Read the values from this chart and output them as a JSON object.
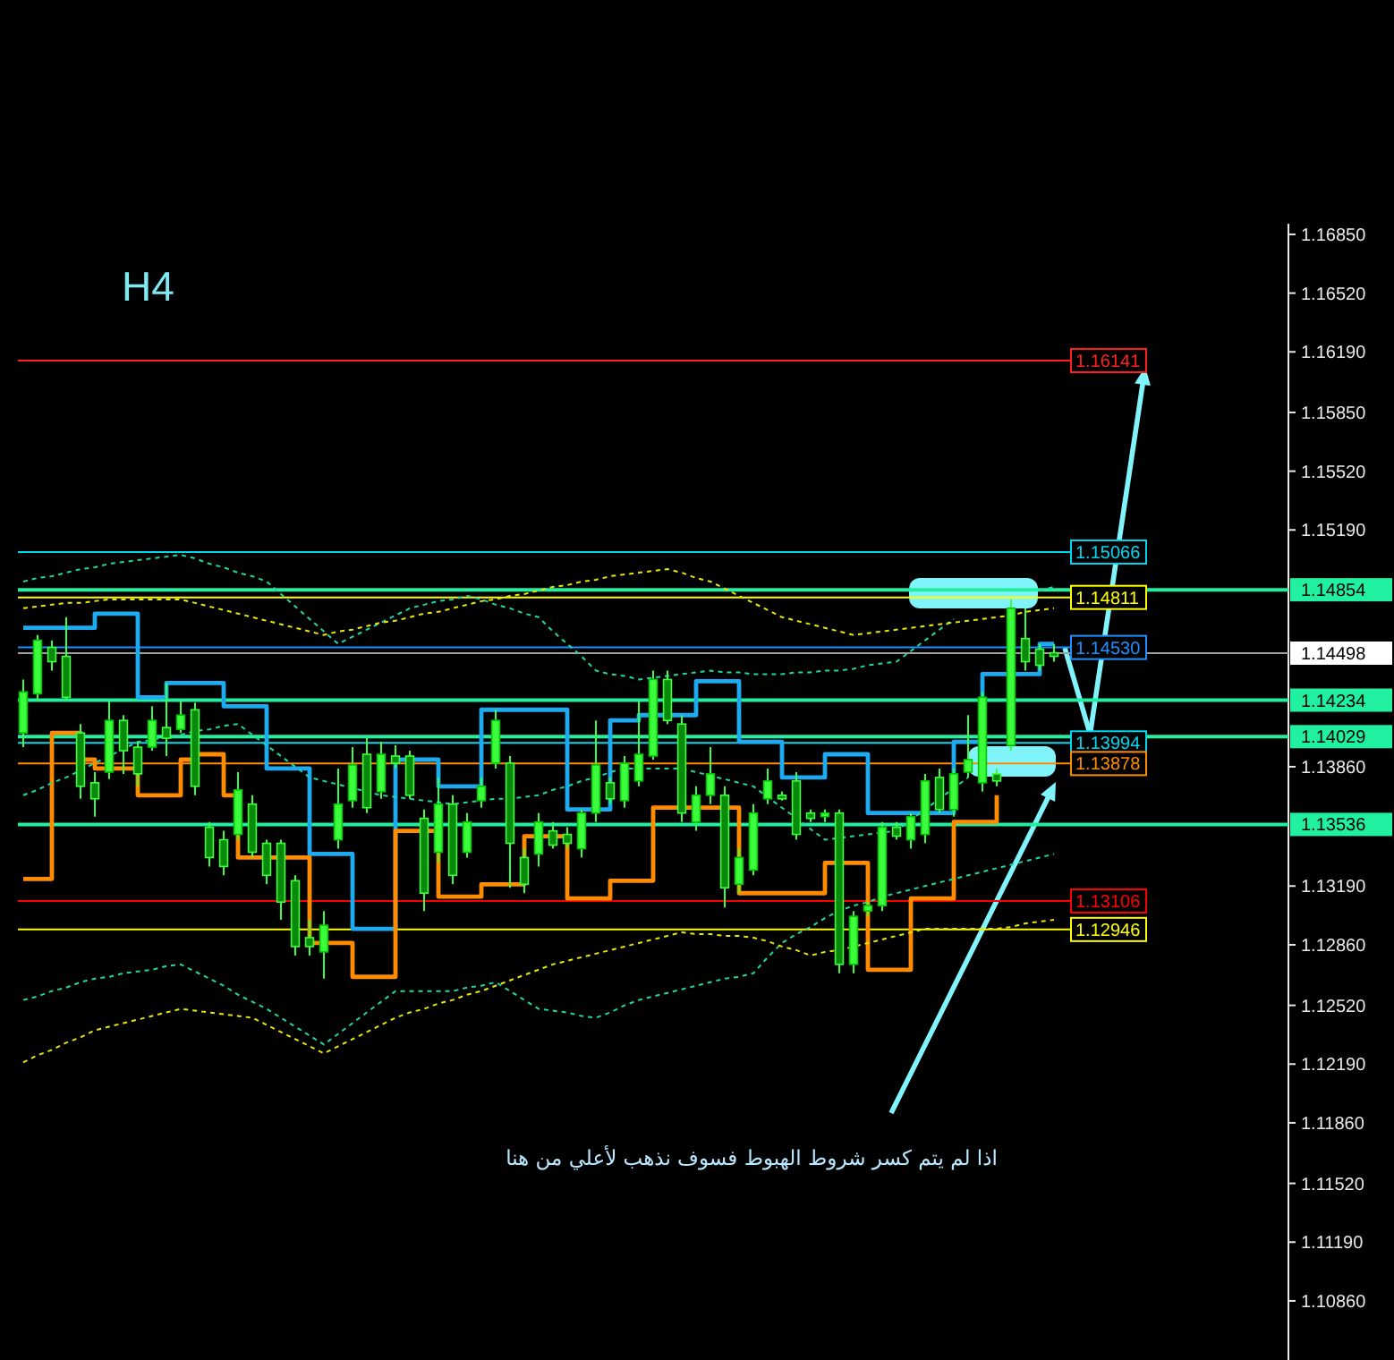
{
  "chart_data": {
    "type": "candlestick",
    "title": "H4",
    "annotations": [
      "اذا لم يتم كسر شروط الهبوط فسوف نذهب لأعلي من هنا"
    ],
    "ylim": [
      1.10528,
      1.1691
    ],
    "tick_labels": "y",
    "yticks": [
      {
        "value": 1.1685,
        "label": "1.16850"
      },
      {
        "value": 1.1652,
        "label": "1.16520"
      },
      {
        "value": 1.1619,
        "label": "1.16190"
      },
      {
        "value": 1.1585,
        "label": "1.15850"
      },
      {
        "value": 1.1552,
        "label": "1.15520"
      },
      {
        "value": 1.1519,
        "label": "1.15190"
      },
      {
        "value": 1.1386,
        "label": "1.13860"
      },
      {
        "value": 1.1319,
        "label": "1.13190"
      },
      {
        "value": 1.1286,
        "label": "1.12860"
      },
      {
        "value": 1.1252,
        "label": "1.12520"
      },
      {
        "value": 1.1219,
        "label": "1.12190"
      },
      {
        "value": 1.1186,
        "label": "1.11860"
      },
      {
        "value": 1.1152,
        "label": "1.11520"
      },
      {
        "value": 1.1119,
        "label": "1.11190"
      },
      {
        "value": 1.1086,
        "label": "1.10860"
      }
    ],
    "categories": [
      null,
      null,
      null,
      null,
      null,
      null,
      null,
      null,
      null,
      null,
      null,
      null,
      null,
      null,
      null,
      null,
      null,
      null,
      null,
      null,
      null,
      null,
      null,
      null,
      null,
      null,
      null,
      null,
      null,
      null,
      null,
      null,
      null,
      null,
      null,
      null,
      null,
      null,
      null,
      null,
      null,
      null,
      null,
      null,
      null,
      null,
      null,
      null,
      null,
      null,
      null,
      null,
      null,
      null,
      null,
      null,
      null,
      null,
      null,
      null,
      null,
      null,
      null,
      null,
      null,
      null,
      null,
      null,
      null,
      null,
      null,
      null,
      null
    ],
    "ohlc": [
      [
        1.1405,
        1.1435,
        1.1397,
        1.1428
      ],
      [
        1.1427,
        1.146,
        1.1423,
        1.1457
      ],
      [
        1.1453,
        1.1457,
        1.144,
        1.1445
      ],
      [
        1.1448,
        1.147,
        1.1423,
        1.1425
      ],
      [
        1.1405,
        1.141,
        1.1368,
        1.1375
      ],
      [
        1.1377,
        1.1383,
        1.1358,
        1.1368
      ],
      [
        1.1383,
        1.1423,
        1.1379,
        1.1412
      ],
      [
        1.1412,
        1.1415,
        1.1382,
        1.1395
      ],
      [
        1.1397,
        1.14,
        1.1375,
        1.1382
      ],
      [
        1.1397,
        1.142,
        1.1395,
        1.1412
      ],
      [
        1.1408,
        1.1433,
        1.1392,
        1.1402
      ],
      [
        1.1407,
        1.1423,
        1.1405,
        1.1415
      ],
      [
        1.1418,
        1.1422,
        1.137,
        1.1375
      ],
      [
        1.1352,
        1.1355,
        1.133,
        1.1335
      ],
      [
        1.1345,
        1.135,
        1.1325,
        1.133
      ],
      [
        1.1348,
        1.1383,
        1.1345,
        1.1373
      ],
      [
        1.1365,
        1.137,
        1.1335,
        1.1338
      ],
      [
        1.1343,
        1.1345,
        1.132,
        1.1325
      ],
      [
        1.1343,
        1.1345,
        1.13,
        1.131
      ],
      [
        1.1322,
        1.1325,
        1.128,
        1.1285
      ],
      [
        1.129,
        1.13,
        1.128,
        1.1285
      ],
      [
        1.1282,
        1.1305,
        1.1267,
        1.1297
      ],
      [
        1.1345,
        1.1385,
        1.134,
        1.1365
      ],
      [
        1.1367,
        1.1397,
        1.1363,
        1.1387
      ],
      [
        1.1393,
        1.1402,
        1.136,
        1.1363
      ],
      [
        1.1372,
        1.14,
        1.1368,
        1.1393
      ],
      [
        1.1392,
        1.1398,
        1.1385,
        1.1388
      ],
      [
        1.1392,
        1.1395,
        1.1368,
        1.137
      ],
      [
        1.1357,
        1.1362,
        1.1305,
        1.1315
      ],
      [
        1.1338,
        1.138,
        1.1332,
        1.1365
      ],
      [
        1.1365,
        1.137,
        1.132,
        1.1325
      ],
      [
        1.1338,
        1.136,
        1.1335,
        1.1355
      ],
      [
        1.1367,
        1.138,
        1.1363,
        1.1375
      ],
      [
        1.1388,
        1.1418,
        1.1385,
        1.1412
      ],
      [
        1.1388,
        1.1392,
        1.1318,
        1.1343
      ],
      [
        1.1335,
        1.134,
        1.1315,
        1.132
      ],
      [
        1.1337,
        1.136,
        1.133,
        1.1355
      ],
      [
        1.135,
        1.1355,
        1.134,
        1.1342
      ],
      [
        1.1348,
        1.1352,
        1.134,
        1.1343
      ],
      [
        1.134,
        1.1362,
        1.1335,
        1.136
      ],
      [
        1.136,
        1.1412,
        1.1355,
        1.1387
      ],
      [
        1.1377,
        1.138,
        1.1365,
        1.1368
      ],
      [
        1.1367,
        1.1392,
        1.1363,
        1.1388
      ],
      [
        1.1378,
        1.1423,
        1.1375,
        1.1393
      ],
      [
        1.1392,
        1.144,
        1.139,
        1.1435
      ],
      [
        1.1435,
        1.144,
        1.141,
        1.1412
      ],
      [
        1.141,
        1.1415,
        1.1355,
        1.136
      ],
      [
        1.1355,
        1.1375,
        1.135,
        1.137
      ],
      [
        1.137,
        1.1397,
        1.1365,
        1.1382
      ],
      [
        1.137,
        1.1375,
        1.1307,
        1.1318
      ],
      [
        1.132,
        1.134,
        1.1315,
        1.1335
      ],
      [
        1.1328,
        1.1365,
        1.1325,
        1.136
      ],
      [
        1.1368,
        1.1385,
        1.1365,
        1.1378
      ],
      [
        1.137,
        1.1372,
        1.1367,
        1.1368
      ],
      [
        1.1378,
        1.1383,
        1.1345,
        1.1348
      ],
      [
        1.136,
        1.1362,
        1.1355,
        1.1357
      ],
      [
        1.1358,
        1.1362,
        1.1355,
        1.136
      ],
      [
        1.136,
        1.1362,
        1.127,
        1.1275
      ],
      [
        1.1275,
        1.1305,
        1.127,
        1.1302
      ],
      [
        1.1305,
        1.131,
        1.1302,
        1.1308
      ],
      [
        1.1308,
        1.1355,
        1.1305,
        1.1352
      ],
      [
        1.1352,
        1.1355,
        1.1345,
        1.1347
      ],
      [
        1.1345,
        1.136,
        1.134,
        1.1358
      ],
      [
        1.1348,
        1.1382,
        1.1343,
        1.1378
      ],
      [
        1.138,
        1.1385,
        1.136,
        1.1362
      ],
      [
        1.1362,
        1.1385,
        1.1358,
        1.1382
      ],
      [
        1.1383,
        1.1415,
        1.138,
        1.139
      ],
      [
        1.1377,
        1.1428,
        1.1372,
        1.1425
      ],
      [
        1.1382,
        1.1385,
        1.1375,
        1.1378
      ],
      [
        1.1398,
        1.148,
        1.1395,
        1.1475
      ],
      [
        1.1458,
        1.1475,
        1.144,
        1.1445
      ],
      [
        1.1452,
        1.1455,
        1.144,
        1.1443
      ],
      [
        1.145,
        1.1455,
        1.1445,
        1.1448
      ]
    ],
    "series": [
      {
        "type": "step",
        "color": "#1eaaf0",
        "line_style": "solid",
        "values": [
          1.1464,
          1.1464,
          1.1464,
          1.1464,
          1.1464,
          1.1472,
          1.1472,
          1.1472,
          1.1425,
          1.1425,
          1.1433,
          1.1433,
          1.1433,
          1.1433,
          1.142,
          1.142,
          1.142,
          1.1385,
          1.1385,
          1.1385,
          1.1337,
          1.1337,
          1.1337,
          1.1295,
          1.1295,
          1.1295,
          1.139,
          1.139,
          1.139,
          1.1375,
          1.1375,
          1.1375,
          1.1418,
          1.1418,
          1.1418,
          1.1418,
          1.1418,
          1.1418,
          1.1362,
          1.1362,
          1.1362,
          1.1412,
          1.1412,
          1.1415,
          1.1415,
          1.1415,
          1.1415,
          1.1434,
          1.1434,
          1.1434,
          1.14,
          1.14,
          1.14,
          1.138,
          1.138,
          1.138,
          1.1393,
          1.1393,
          1.1393,
          1.136,
          1.136,
          1.136,
          1.136,
          1.136,
          1.136,
          1.14,
          1.14,
          1.1438,
          1.1438,
          1.1438,
          1.1438,
          1.1455,
          1.1455
        ]
      },
      {
        "type": "step",
        "color": "#ff8c00",
        "line_style": "solid",
        "values": [
          1.1323,
          1.1323,
          1.1405,
          1.1405,
          1.139,
          1.1385,
          1.1385,
          1.1385,
          1.137,
          1.137,
          1.137,
          1.139,
          1.1393,
          1.1393,
          1.137,
          1.1335,
          1.1335,
          1.1335,
          1.1335,
          1.1335,
          1.1287,
          1.1287,
          1.1287,
          1.1268,
          1.1268,
          1.1268,
          1.135,
          1.135,
          1.135,
          1.1313,
          1.1313,
          1.1313,
          1.132,
          1.132,
          1.132,
          1.1347,
          1.1347,
          1.1347,
          1.1312,
          1.1312,
          1.1312,
          1.1322,
          1.1322,
          1.1322,
          1.1363,
          1.1363,
          1.1363,
          1.1363,
          1.1363,
          1.1363,
          1.1315,
          1.1315,
          1.1315,
          1.1315,
          1.1315,
          1.1315,
          1.1332,
          1.1332,
          1.1332,
          1.1272,
          1.1272,
          1.1272,
          1.1312,
          1.1312,
          1.1312,
          1.1355,
          1.1355,
          1.1355,
          1.137,
          null,
          null,
          null,
          null
        ]
      },
      {
        "type": "line",
        "color": "#20d8a0",
        "line_style": "dashed",
        "values": [
          1.149,
          1.1492,
          1.1493,
          1.1495,
          1.1497,
          1.1498,
          1.15,
          1.1501,
          1.1502,
          1.1503,
          1.1504,
          1.1505,
          1.1503,
          1.15,
          1.1498,
          1.1495,
          1.1493,
          1.149,
          1.1483,
          1.1476,
          1.1469,
          1.1462,
          1.1455,
          1.1459,
          1.1463,
          1.1467,
          1.1471,
          1.1475,
          1.1477,
          1.1479,
          1.148,
          1.1482,
          1.148,
          1.1477,
          1.1475,
          1.1472,
          1.147,
          1.1462,
          1.1455,
          1.1448,
          1.144,
          1.1438,
          1.1437,
          1.1435,
          1.1436,
          1.1437,
          1.1438,
          1.1439,
          1.144,
          1.1439,
          1.1439,
          1.1438,
          1.1438,
          1.1438,
          1.1439,
          1.1439,
          1.144,
          1.144,
          1.1441,
          1.1443,
          1.1444,
          1.1445,
          1.1451,
          1.1457,
          1.1463,
          1.1469,
          null,
          null,
          null,
          null,
          null,
          1.1485,
          1.1487
        ]
      },
      {
        "type": "line",
        "color": "#20d8a0",
        "line_style": "dashed",
        "values": [
          1.137,
          1.1373,
          1.1377,
          1.138,
          1.1384,
          1.1388,
          1.1392,
          1.1396,
          1.14,
          1.1401,
          1.1403,
          1.1404,
          1.1406,
          1.1407,
          1.1409,
          1.141,
          1.1404,
          1.1398,
          1.1392,
          1.1386,
          1.138,
          1.1378,
          1.1376,
          1.1374,
          1.1372,
          1.137,
          1.1369,
          1.1368,
          1.1367,
          1.1366,
          1.1365,
          1.1366,
          1.1367,
          1.1368,
          1.1368,
          1.1369,
          1.137,
          1.1373,
          1.1375,
          1.1378,
          1.138,
          1.1383,
          1.1385,
          1.1385,
          1.1385,
          1.1385,
          1.1385,
          1.1383,
          1.1381,
          1.1379,
          1.1377,
          1.1375,
          1.1369,
          1.1363,
          1.1357,
          1.1351,
          1.1345,
          1.1346,
          1.1347,
          1.1348,
          1.1349,
          1.135,
          1.1356,
          1.1362,
          1.1368,
          1.1374,
          1.138,
          null,
          null,
          null,
          null,
          null,
          null
        ]
      },
      {
        "type": "line",
        "color": "#20d8a0",
        "line_style": "dashed",
        "values": [
          1.1255,
          1.1257,
          1.126,
          1.1262,
          1.1265,
          1.1267,
          1.1268,
          1.127,
          1.1271,
          1.1272,
          1.1274,
          1.1275,
          1.1271,
          1.1267,
          1.1263,
          1.1258,
          1.1254,
          1.125,
          1.1245,
          1.124,
          1.1235,
          1.123,
          1.1236,
          1.1242,
          1.1248,
          1.1254,
          1.126,
          1.126,
          1.126,
          1.126,
          1.126,
          1.1262,
          1.1263,
          1.1265,
          1.126,
          1.1255,
          1.125,
          1.1249,
          1.1248,
          1.1246,
          1.1245,
          1.1248,
          1.1252,
          1.1255,
          1.1257,
          1.1259,
          1.1261,
          1.1263,
          1.1265,
          1.1267,
          1.1268,
          1.127,
          1.1279,
          1.1287,
          1.1292,
          1.1296,
          1.1301,
          1.1305,
          1.1308,
          1.131,
          1.1313,
          1.1315,
          1.1317,
          1.1319,
          1.1321,
          1.1323,
          1.1325,
          1.1327,
          1.1329,
          1.1331,
          1.1333,
          1.1335,
          1.1337
        ]
      },
      {
        "type": "line",
        "color": "#e8e800",
        "line_style": "dashed",
        "values": [
          1.1475,
          1.1476,
          1.1477,
          1.1478,
          1.1478,
          1.1479,
          1.148,
          1.148,
          1.148,
          1.148,
          1.148,
          1.148,
          1.1478,
          1.1476,
          1.1474,
          1.1472,
          1.147,
          1.1468,
          1.1466,
          1.1464,
          1.1462,
          1.146,
          1.1462,
          1.1463,
          1.1465,
          1.1467,
          1.1468,
          1.147,
          1.1472,
          1.1473,
          1.1475,
          1.1477,
          1.1479,
          1.148,
          1.1482,
          1.1483,
          1.1485,
          1.1487,
          1.1488,
          1.149,
          1.1491,
          1.1493,
          1.1494,
          1.1495,
          1.1496,
          1.1497,
          1.1495,
          1.1492,
          1.149,
          1.1486,
          1.1482,
          1.1478,
          1.1474,
          1.147,
          1.1468,
          1.1466,
          1.1464,
          1.1462,
          1.146,
          1.1461,
          1.1462,
          1.1463,
          1.1464,
          1.1465,
          1.1466,
          1.1467,
          1.1468,
          1.1469,
          1.147,
          1.1471,
          1.1473,
          1.1474,
          1.1475
        ]
      },
      {
        "type": "line",
        "color": "#e8e800",
        "line_style": "dashed",
        "values": [
          1.122,
          1.1224,
          1.1227,
          1.1231,
          1.1234,
          1.1238,
          1.124,
          1.1242,
          1.1244,
          1.1246,
          1.1248,
          1.125,
          1.1249,
          1.1248,
          1.1247,
          1.1246,
          1.1245,
          1.1241,
          1.1237,
          1.1233,
          1.1229,
          1.1225,
          1.1229,
          1.1233,
          1.1237,
          1.1241,
          1.1245,
          1.1248,
          1.125,
          1.1253,
          1.1255,
          1.1258,
          1.126,
          1.1263,
          1.1266,
          1.1269,
          1.1272,
          1.1275,
          1.1277,
          1.1279,
          1.1281,
          1.1283,
          1.1285,
          1.1287,
          1.1289,
          1.1291,
          1.1293,
          1.1292,
          1.1292,
          1.1291,
          1.1291,
          1.129,
          1.1288,
          1.1285,
          1.1283,
          1.128,
          1.1282,
          1.1283,
          1.1285,
          1.1287,
          1.1289,
          1.1291,
          1.1293,
          1.1295,
          1.1295,
          1.1295,
          1.1295,
          1.1295,
          1.1295,
          1.1296,
          1.1298,
          1.1299,
          1.13
        ]
      }
    ],
    "ref_lines": [
      {
        "axis": "y",
        "value": 1.16141,
        "label": "1.16141",
        "color": "#ff2020"
      },
      {
        "axis": "y",
        "value": 1.15066,
        "label": "1.15066",
        "color": "#00d8f0"
      },
      {
        "axis": "y",
        "value": 1.14854,
        "label": "1.14854",
        "color": "#20f0a0"
      },
      {
        "axis": "y",
        "value": 1.14811,
        "label": "1.14811",
        "color": "#ffff00"
      },
      {
        "axis": "y",
        "value": 1.1453,
        "label": "1.14530",
        "color": "#1e90ff"
      },
      {
        "axis": "y",
        "value": 1.14498,
        "label": "1.14498",
        "color": "#a0a0a0"
      },
      {
        "axis": "y",
        "value": 1.14234,
        "label": "1.14234",
        "color": "#20f0a0"
      },
      {
        "axis": "y",
        "value": 1.14029,
        "label": "1.14029",
        "color": "#20f0a0"
      },
      {
        "axis": "y",
        "value": 1.13994,
        "label": "1.13994",
        "color": "#00d8f0"
      },
      {
        "axis": "y",
        "value": 1.13878,
        "label": "1.13878",
        "color": "#ff8c00"
      },
      {
        "axis": "y",
        "value": 1.13536,
        "label": "1.13536",
        "color": "#20f0a0"
      },
      {
        "axis": "y",
        "value": 1.13106,
        "label": "1.13106",
        "color": "#ff0000"
      },
      {
        "axis": "y",
        "value": 1.12946,
        "label": "1.12946",
        "color": "#ffff00"
      }
    ]
  }
}
